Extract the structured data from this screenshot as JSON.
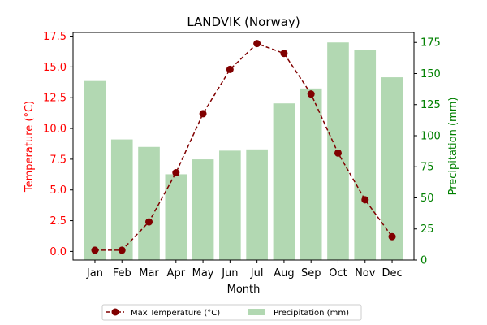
{
  "chart_data": {
    "type": "bar+line",
    "title": "LANDVIK (Norway)",
    "xlabel": "Month",
    "ylabel_left": "Temperature (°C)",
    "ylabel_right": "Precipitation (mm)",
    "categories": [
      "Jan",
      "Feb",
      "Mar",
      "Apr",
      "May",
      "Jun",
      "Jul",
      "Aug",
      "Sep",
      "Oct",
      "Nov",
      "Dec"
    ],
    "ylim_left": [
      -0.7,
      17.8
    ],
    "ylim_right": [
      0,
      183
    ],
    "yticks_left": [
      "0.0",
      "2.5",
      "5.0",
      "7.5",
      "10.0",
      "12.5",
      "15.0",
      "17.5"
    ],
    "yticks_right": [
      "0",
      "25",
      "50",
      "75",
      "100",
      "125",
      "150",
      "175"
    ],
    "series": [
      {
        "name": "Max Temperature (°C)",
        "kind": "line",
        "axis": "left",
        "color": "#800000",
        "values": [
          0.1,
          0.1,
          2.4,
          6.4,
          11.2,
          14.8,
          16.9,
          16.1,
          12.8,
          8.0,
          4.2,
          1.2
        ]
      },
      {
        "name": "Precipitation (mm)",
        "kind": "bar",
        "axis": "right",
        "color": "#b2d8b2",
        "values": [
          144,
          97,
          91,
          69,
          81,
          88,
          89,
          126,
          138,
          175,
          169,
          147
        ]
      }
    ],
    "legend": "bottom-center",
    "colors": {
      "left_axis": "#ff0000",
      "right_axis": "#008000"
    }
  }
}
